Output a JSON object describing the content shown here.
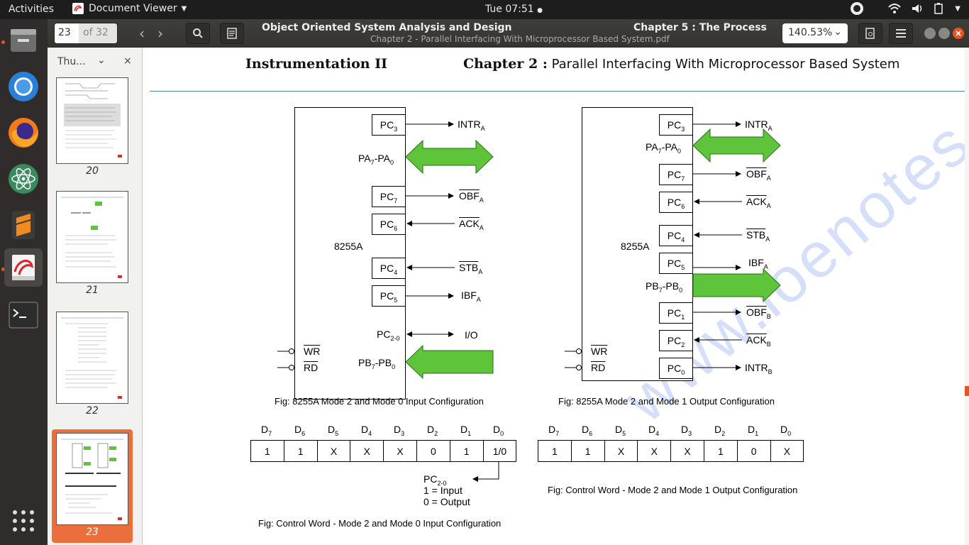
{
  "topbar": {
    "activities": "Activities",
    "app_name": "Document Viewer",
    "clock": "Tue 07:51"
  },
  "header": {
    "page_current": "23",
    "page_of": "of 32",
    "title_left": "Object Oriented System Analysis and Design",
    "title_right": "Chapter 5 : The  Process",
    "subtitle": "Chapter 2 - Parallel Interfacing With Microprocessor Based System.pdf",
    "zoom": "140.53%"
  },
  "sidebar": {
    "mode": "Thu...",
    "pages": [
      {
        "label": "20",
        "selected": false
      },
      {
        "label": "21",
        "selected": false
      },
      {
        "label": "22",
        "selected": false
      },
      {
        "label": "23",
        "selected": true
      }
    ]
  },
  "document": {
    "header_left": "Instrumentation II",
    "header_right_bold": "Chapter 2 :",
    "header_right_text": " Parallel Interfacing With Microprocessor Based System",
    "chip_name": "8255A",
    "fig1": {
      "caption": "Fig: 8255A Mode 2 and Mode 0 Input Configuration",
      "pins": [
        {
          "pin": "PC",
          "sub": "3",
          "signal": "INTR",
          "signal_sub": "A",
          "bar": false
        },
        {
          "pin": "PC",
          "sub": "7",
          "signal": "OBF",
          "signal_sub": "A",
          "bar": true
        },
        {
          "pin": "PC",
          "sub": "6",
          "signal": "ACK",
          "signal_sub": "A",
          "bar": true
        },
        {
          "pin": "PC",
          "sub": "4",
          "signal": "STB",
          "signal_sub": "A",
          "bar": true
        },
        {
          "pin": "PC",
          "sub": "5",
          "signal": "IBF",
          "signal_sub": "A",
          "bar": false
        }
      ],
      "pa_label": "PA",
      "pa_sub_hi": "7",
      "pa_sub_lo": "0",
      "pc20": "PC",
      "pc20_sub": "2-0",
      "io": "I/O",
      "pb_label": "PB",
      "pb_sub_hi": "7",
      "pb_sub_lo": "0",
      "bus_width": "8",
      "wr": "WR",
      "rd": "RD"
    },
    "fig2": {
      "caption": "Fig: 8255A Mode 2 and Mode 1 Output Configuration",
      "pins": [
        {
          "pin": "PC",
          "sub": "3",
          "signal": "INTR",
          "signal_sub": "A",
          "bar": false
        },
        {
          "pin": "PC",
          "sub": "7",
          "signal": "OBF",
          "signal_sub": "A",
          "bar": true
        },
        {
          "pin": "PC",
          "sub": "6",
          "signal": "ACK",
          "signal_sub": "A",
          "bar": true
        },
        {
          "pin": "PC",
          "sub": "4",
          "signal": "STB",
          "signal_sub": "A",
          "bar": true
        },
        {
          "pin": "PC",
          "sub": "5",
          "signal": "IBF",
          "signal_sub": "A",
          "bar": false
        },
        {
          "pin": "PC",
          "sub": "1",
          "signal": "OBF",
          "signal_sub": "B",
          "bar": true
        },
        {
          "pin": "PC",
          "sub": "2",
          "signal": "ACK",
          "signal_sub": "B",
          "bar": true
        },
        {
          "pin": "PC",
          "sub": "0",
          "signal": "INTR",
          "signal_sub": "B",
          "bar": false
        }
      ],
      "pa_label": "PA",
      "pb_label": "PB",
      "bus_width": "8",
      "wr": "WR",
      "rd": "RD"
    },
    "cw1": {
      "headers": [
        "D7",
        "D6",
        "D5",
        "D4",
        "D3",
        "D2",
        "D1",
        "D0"
      ],
      "values": [
        "1",
        "1",
        "X",
        "X",
        "X",
        "0",
        "1",
        "1/0"
      ],
      "note_pc": "PC",
      "note_pc_sub": "2-0",
      "note_line1": "1 = Input",
      "note_line2": "0 = Output",
      "caption": "Fig: Control Word - Mode 2 and Mode 0 Input Configuration"
    },
    "cw2": {
      "headers": [
        "D7",
        "D6",
        "D5",
        "D4",
        "D3",
        "D2",
        "D1",
        "D0"
      ],
      "values": [
        "1",
        "1",
        "X",
        "X",
        "X",
        "1",
        "0",
        "X"
      ],
      "caption": "Fig: Control Word - Mode 2 and Mode 1 Output Configuration"
    },
    "watermark": "www.ioenotes.edu.np"
  },
  "colors": {
    "bus_arrow": "#5ec43a",
    "accent": "#e95420",
    "rule": "#4a86a8"
  }
}
